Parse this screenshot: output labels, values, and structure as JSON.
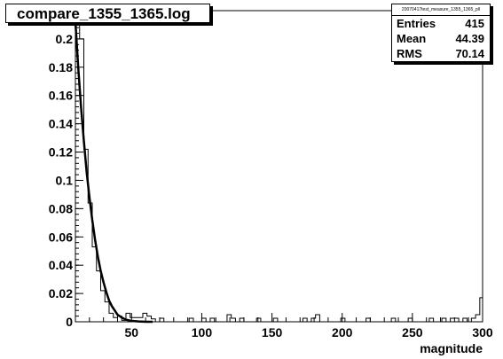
{
  "chart_data": {
    "type": "bar",
    "title": "compare_1355_1365.log",
    "xlabel": "magnitude",
    "ylabel": "",
    "xlim": [
      10,
      300
    ],
    "ylim": [
      0,
      0.22
    ],
    "x_ticks": [
      50,
      100,
      150,
      200,
      250,
      300
    ],
    "y_ticks": [
      0,
      0.02,
      0.04,
      0.06,
      0.08,
      0.1,
      0.12,
      0.14,
      0.16,
      0.18,
      0.2
    ],
    "bin_width": 3,
    "histogram": {
      "bin_starts": [
        10,
        13,
        16,
        19,
        22,
        25,
        28,
        31,
        34,
        37,
        40,
        43,
        46,
        49,
        52,
        55,
        58,
        61,
        64,
        67,
        70,
        73,
        76,
        79,
        82,
        85,
        88,
        91,
        94,
        97,
        100,
        103,
        106,
        109,
        112,
        115,
        118,
        121,
        124,
        127,
        130,
        133,
        136,
        139,
        142,
        145,
        148,
        151,
        154,
        157,
        160,
        163,
        166,
        169,
        172,
        175,
        178,
        181,
        184,
        187,
        190,
        193,
        196,
        199,
        202,
        205,
        208,
        211,
        214,
        217,
        220,
        223,
        226,
        229,
        232,
        235,
        238,
        241,
        244,
        247,
        250,
        253,
        256,
        259,
        262,
        265,
        268,
        271,
        274,
        277,
        280,
        283,
        286,
        289,
        292,
        295,
        298
      ],
      "values": [
        0.213,
        0.2,
        0.122,
        0.084,
        0.053,
        0.036,
        0.022,
        0.014,
        0.006,
        0.003,
        0.004,
        0.001,
        0.006,
        0.003,
        0.003,
        0.003,
        0.006,
        0.004,
        0.002,
        0,
        0.0025,
        0,
        0,
        0,
        0,
        0,
        0,
        0.0025,
        0,
        0,
        0.0025,
        0,
        0.0025,
        0,
        0,
        0,
        0.005,
        0.0025,
        0,
        0.0025,
        0,
        0,
        0,
        0.0025,
        0,
        0,
        0,
        0.0025,
        0,
        0,
        0,
        0,
        0,
        0,
        0.0025,
        0,
        0.0025,
        0.005,
        0,
        0,
        0,
        0,
        0,
        0.0025,
        0,
        0,
        0,
        0,
        0,
        0.0025,
        0,
        0,
        0,
        0,
        0,
        0.0025,
        0,
        0,
        0,
        0.0025,
        0,
        0,
        0,
        0,
        0.0025,
        0,
        0,
        0.0025,
        0,
        0.0025,
        0.0025,
        0,
        0.0025,
        0,
        0.0025,
        0.005,
        0.017
      ]
    },
    "fit_curve": {
      "x": [
        10,
        12,
        14,
        16,
        18,
        20,
        22,
        24,
        26,
        28,
        30,
        32,
        34,
        36,
        38,
        40,
        43,
        46,
        50,
        55,
        60,
        65
      ],
      "y": [
        0.212,
        0.18,
        0.152,
        0.128,
        0.106,
        0.088,
        0.072,
        0.058,
        0.046,
        0.036,
        0.028,
        0.021,
        0.015,
        0.011,
        0.008,
        0.005,
        0.003,
        0.0015,
        0.0006,
        0.0002,
        0,
        0
      ]
    },
    "stats": {
      "name": "20070417test_measure_1355_1365_pll",
      "entries_label": "Entries",
      "entries": "415",
      "mean_label": "Mean",
      "mean": "44.39",
      "rms_label": "RMS",
      "rms": "70.14"
    },
    "grid": false,
    "legend": "none"
  }
}
